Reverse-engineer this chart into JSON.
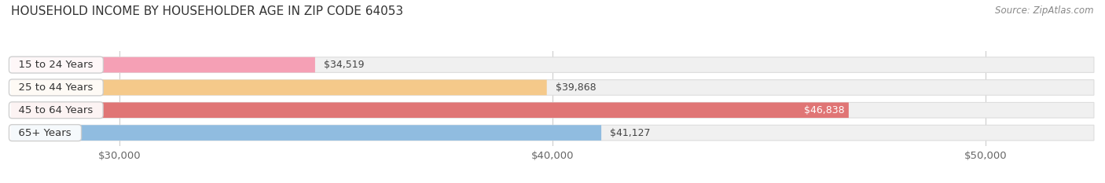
{
  "title": "HOUSEHOLD INCOME BY HOUSEHOLDER AGE IN ZIP CODE 64053",
  "source": "Source: ZipAtlas.com",
  "categories": [
    "15 to 24 Years",
    "25 to 44 Years",
    "45 to 64 Years",
    "65+ Years"
  ],
  "values": [
    34519,
    39868,
    46838,
    41127
  ],
  "bar_colors": [
    "#f5a0b5",
    "#f5c98a",
    "#e07575",
    "#90bce0"
  ],
  "background_color": "#ffffff",
  "bar_bg_color": "#f0f0f0",
  "bar_border_color": "#dddddd",
  "xlim_min": 27500,
  "xlim_max": 52500,
  "x_ticks": [
    30000,
    40000,
    50000
  ],
  "x_tick_labels": [
    "$30,000",
    "$40,000",
    "$50,000"
  ],
  "label_fontsize": 9.5,
  "value_fontsize": 9,
  "title_fontsize": 11,
  "source_fontsize": 8.5
}
